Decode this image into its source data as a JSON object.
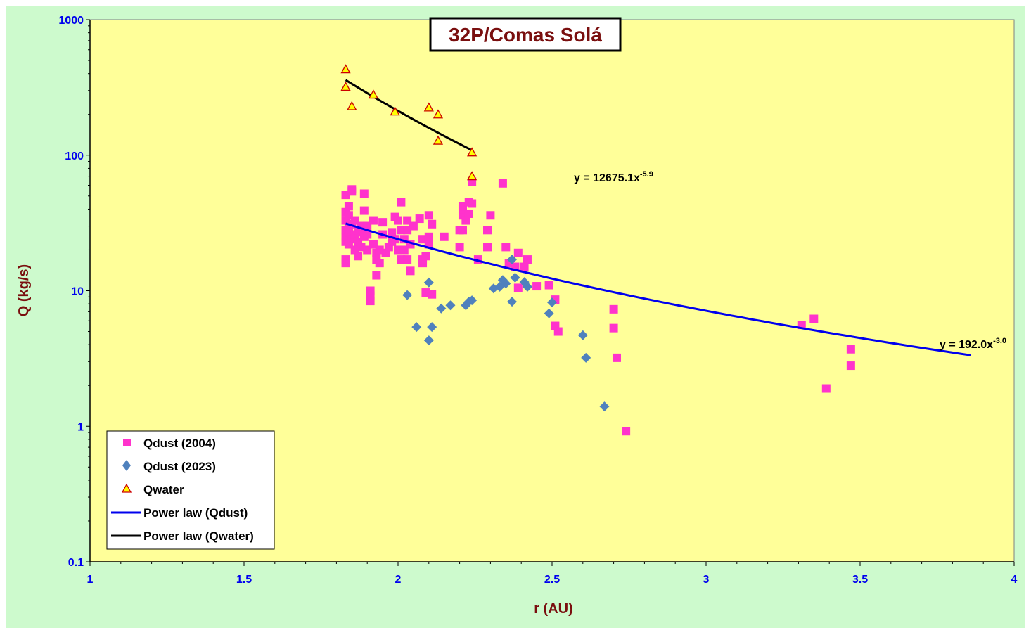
{
  "chart_data": {
    "type": "scatter",
    "title": "32P/Comas Solá",
    "xlabel": "r (AU)",
    "ylabel": "Q (kg/s)",
    "xlim": [
      1,
      4
    ],
    "ylim": [
      0.1,
      1000
    ],
    "yscale": "log",
    "x_ticks": [
      "1",
      "1.5",
      "2",
      "2.5",
      "3",
      "3.5",
      "4"
    ],
    "y_ticks": [
      "0.1",
      "1",
      "10",
      "100",
      "1000"
    ],
    "legend_position": "bottom-left",
    "colors": {
      "chart_bg": "#cdfacd",
      "plot_bg": "#ffff99",
      "qdust_2004": "#ff33cc",
      "qdust_2023": "#4f81bd",
      "qwater_fill": "#ffff00",
      "qwater_edge": "#cc0000",
      "fit_dust": "#0000ee",
      "fit_water": "#000000",
      "tick_text": "#0000ee",
      "title_text": "#7a0f0f"
    },
    "series": [
      {
        "name": "Qdust (2004)",
        "marker": "square",
        "points": [
          [
            1.83,
            16
          ],
          [
            1.83,
            17
          ],
          [
            1.83,
            23
          ],
          [
            1.83,
            25
          ],
          [
            1.83,
            28
          ],
          [
            1.83,
            33
          ],
          [
            1.83,
            38
          ],
          [
            1.83,
            51
          ],
          [
            1.84,
            42
          ],
          [
            1.84,
            36
          ],
          [
            1.84,
            30
          ],
          [
            1.84,
            27
          ],
          [
            1.84,
            22
          ],
          [
            1.85,
            56
          ],
          [
            1.85,
            54
          ],
          [
            1.85,
            31
          ],
          [
            1.85,
            24
          ],
          [
            1.86,
            33
          ],
          [
            1.86,
            26
          ],
          [
            1.86,
            20
          ],
          [
            1.87,
            28
          ],
          [
            1.87,
            23
          ],
          [
            1.87,
            18
          ],
          [
            1.88,
            30
          ],
          [
            1.88,
            27
          ],
          [
            1.88,
            21
          ],
          [
            1.89,
            52
          ],
          [
            1.89,
            39
          ],
          [
            1.89,
            25
          ],
          [
            1.9,
            30
          ],
          [
            1.9,
            20
          ],
          [
            1.9,
            26
          ],
          [
            1.91,
            8.4
          ],
          [
            1.91,
            9.2
          ],
          [
            1.91,
            10
          ],
          [
            1.92,
            33
          ],
          [
            1.92,
            22
          ],
          [
            1.93,
            19
          ],
          [
            1.93,
            17
          ],
          [
            1.93,
            13
          ],
          [
            1.94,
            16
          ],
          [
            1.94,
            20
          ],
          [
            1.95,
            32
          ],
          [
            1.95,
            26
          ],
          [
            1.96,
            19
          ],
          [
            1.97,
            21
          ],
          [
            1.98,
            27
          ],
          [
            1.98,
            23
          ],
          [
            1.99,
            24
          ],
          [
            1.99,
            35
          ],
          [
            2.0,
            20
          ],
          [
            2.0,
            33
          ],
          [
            2.01,
            45
          ],
          [
            2.01,
            28
          ],
          [
            2.01,
            17
          ],
          [
            2.02,
            20
          ],
          [
            2.02,
            24
          ],
          [
            2.03,
            33
          ],
          [
            2.03,
            28
          ],
          [
            2.03,
            17
          ],
          [
            2.04,
            14
          ],
          [
            2.04,
            22
          ],
          [
            2.05,
            30
          ],
          [
            2.07,
            34
          ],
          [
            2.08,
            24
          ],
          [
            2.08,
            17
          ],
          [
            2.08,
            16
          ],
          [
            2.09,
            18
          ],
          [
            2.09,
            9.7
          ],
          [
            2.1,
            36
          ],
          [
            2.1,
            25
          ],
          [
            2.1,
            22
          ],
          [
            2.11,
            31
          ],
          [
            2.11,
            9.4
          ],
          [
            2.15,
            25
          ],
          [
            2.2,
            28
          ],
          [
            2.2,
            21
          ],
          [
            2.21,
            36
          ],
          [
            2.21,
            40
          ],
          [
            2.21,
            42
          ],
          [
            2.21,
            28
          ],
          [
            2.22,
            33
          ],
          [
            2.23,
            37
          ],
          [
            2.23,
            45
          ],
          [
            2.24,
            44
          ],
          [
            2.24,
            64
          ],
          [
            2.26,
            17
          ],
          [
            2.29,
            28
          ],
          [
            2.29,
            21
          ],
          [
            2.3,
            36
          ],
          [
            2.34,
            62
          ],
          [
            2.35,
            21
          ],
          [
            2.36,
            16
          ],
          [
            2.38,
            15
          ],
          [
            2.39,
            19
          ],
          [
            2.39,
            10.5
          ],
          [
            2.41,
            15
          ],
          [
            2.42,
            17
          ],
          [
            2.45,
            10.8
          ],
          [
            2.49,
            11
          ],
          [
            2.51,
            8.6
          ],
          [
            2.51,
            5.5
          ],
          [
            2.52,
            5
          ],
          [
            2.7,
            7.3
          ],
          [
            2.7,
            5.3
          ],
          [
            2.71,
            3.2
          ],
          [
            2.74,
            0.92
          ],
          [
            3.31,
            5.6
          ],
          [
            3.35,
            6.2
          ],
          [
            3.39,
            1.9
          ],
          [
            3.47,
            3.7
          ],
          [
            3.47,
            2.8
          ]
        ]
      },
      {
        "name": "Qdust (2023)",
        "marker": "diamond",
        "points": [
          [
            2.03,
            9.3
          ],
          [
            2.06,
            5.4
          ],
          [
            2.1,
            11.5
          ],
          [
            2.1,
            4.3
          ],
          [
            2.11,
            5.4
          ],
          [
            2.14,
            7.4
          ],
          [
            2.17,
            7.8
          ],
          [
            2.22,
            7.8
          ],
          [
            2.23,
            8.3
          ],
          [
            2.24,
            8.5
          ],
          [
            2.31,
            10.4
          ],
          [
            2.33,
            10.7
          ],
          [
            2.34,
            12
          ],
          [
            2.35,
            11.3
          ],
          [
            2.37,
            8.3
          ],
          [
            2.37,
            17
          ],
          [
            2.38,
            12.5
          ],
          [
            2.41,
            11.6
          ],
          [
            2.42,
            10.7
          ],
          [
            2.49,
            6.8
          ],
          [
            2.5,
            8.2
          ],
          [
            2.6,
            4.7
          ],
          [
            2.61,
            3.2
          ],
          [
            2.67,
            1.4
          ]
        ]
      },
      {
        "name": "Qwater",
        "marker": "triangle",
        "points": [
          [
            1.83,
            430
          ],
          [
            1.83,
            320
          ],
          [
            1.85,
            230
          ],
          [
            1.92,
            280
          ],
          [
            1.99,
            210
          ],
          [
            2.1,
            225
          ],
          [
            2.13,
            200
          ],
          [
            2.13,
            128
          ],
          [
            2.24,
            105
          ],
          [
            2.24,
            70
          ]
        ]
      }
    ],
    "fits": [
      {
        "name": "Power law (Qdust)",
        "coef": 192.0,
        "exp": -3.0,
        "x_range": [
          1.83,
          3.86
        ],
        "label_prefix": "y = 192.0x",
        "label_exp": "-3.0"
      },
      {
        "name": "Power law (Qwater)",
        "coef": 12675.1,
        "exp": -5.9,
        "x_range": [
          1.83,
          2.24
        ],
        "label_prefix": "y = 12675.1x",
        "label_exp": "-5.9"
      }
    ]
  }
}
